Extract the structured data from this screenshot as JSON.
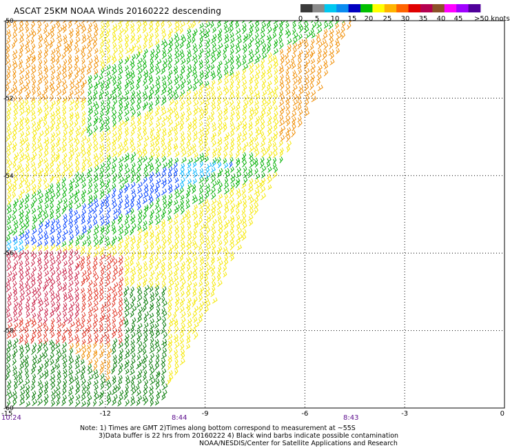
{
  "title": "ASCAT 25KM NOAA Winds 20160222 descending",
  "legend": {
    "labels": [
      "0",
      "5",
      "10",
      "15",
      "20",
      "25",
      "30",
      "35",
      "40",
      "45",
      ">50 knots"
    ],
    "colors": [
      "#3a3a3a",
      "#8a8a8a",
      "#00c8f0",
      "#0a8cf0",
      "#0000c0",
      "#00c000",
      "#ffff00",
      "#ffb400",
      "#ff6400",
      "#e00000",
      "#b40050",
      "#8c5028",
      "#ff00ff",
      "#a000ff",
      "#50009a"
    ]
  },
  "map": {
    "lat_labels": [
      "-50",
      "-52",
      "-54",
      "-56",
      "-58",
      "-60"
    ],
    "lon_labels": [
      "-15",
      "-12",
      "-9",
      "-6",
      "-3",
      "0"
    ],
    "time_labels": [
      "10:24",
      "8:44",
      "8:43"
    ],
    "barb_colors": {
      "yellow": "#f5e800",
      "orange": "#f08c00",
      "green": "#00b000",
      "dark_green": "#007800",
      "blue": "#0040ff",
      "light_blue": "#00b4ff",
      "red": "#e03020",
      "crimson": "#c81e46",
      "black": "#000000"
    }
  },
  "notes": {
    "line1": "Note: 1) Times are GMT 2)Times along bottom correspond to measurement at ~55S",
    "line2": "3)Data buffer is 22 hrs from 20160222 4) Black wind barbs indicate possible contamination",
    "line3": "NOAA/NESDIS/Center for Satellite Applications and Research"
  }
}
